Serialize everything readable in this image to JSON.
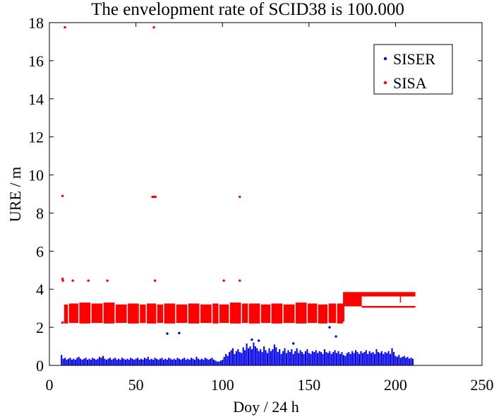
{
  "chart_data": {
    "type": "scatter",
    "title": "The envelopment rate of SCID38 is 100.000",
    "x_axis": {
      "label": "Doy / 24 h",
      "range": [
        0,
        250
      ],
      "ticks": [
        0,
        50,
        100,
        150,
        200,
        250
      ]
    },
    "y_axis": {
      "label": "URE / m",
      "range": [
        0,
        18
      ],
      "ticks": [
        0,
        2,
        4,
        6,
        8,
        10,
        12,
        14,
        16,
        18
      ]
    },
    "grid": false,
    "legend_position": "top-right",
    "series": [
      {
        "name": "SISER",
        "color": "#0000ff",
        "daily": {
          "start_day": 7,
          "low": 0.0,
          "high": [
            0.55,
            0.35,
            0.4,
            0.3,
            0.35,
            0.4,
            0.3,
            0.35,
            0.3,
            0.4,
            0.45,
            0.35,
            0.3,
            0.35,
            0.4,
            0.3,
            0.35,
            0.3,
            0.4,
            0.35,
            0.3,
            0.35,
            0.45,
            0.4,
            0.5,
            0.35,
            0.3,
            0.35,
            0.4,
            0.3,
            0.35,
            0.4,
            0.3,
            0.35,
            0.3,
            0.4,
            0.35,
            0.3,
            0.35,
            0.3,
            0.4,
            0.35,
            0.3,
            0.35,
            0.4,
            0.3,
            0.35,
            0.3,
            0.4,
            0.35,
            0.45,
            0.3,
            0.35,
            0.3,
            0.4,
            0.35,
            0.3,
            0.35,
            0.4,
            0.3,
            0.35,
            0.3,
            0.4,
            0.35,
            0.3,
            0.35,
            0.3,
            0.4,
            0.35,
            0.3,
            0.35,
            0.4,
            0.3,
            0.35,
            0.3,
            0.4,
            0.35,
            0.3,
            0.45,
            0.35,
            0.3,
            0.35,
            0.3,
            0.4,
            0.35,
            0.3,
            0.35,
            0.4,
            0.3,
            0.25,
            0.2,
            0.2,
            0.25,
            0.3,
            0.45,
            0.6,
            0.5,
            0.7,
            0.8,
            0.9,
            0.6,
            0.75,
            0.85,
            0.7,
            0.65,
            0.95,
            0.8,
            1.15,
            0.9,
            1.0,
            0.85,
            1.2,
            1.0,
            0.9,
            0.75,
            0.85,
            0.7,
            1.0,
            0.8,
            0.65,
            0.9,
            0.75,
            0.85,
            1.1,
            0.95,
            0.7,
            0.85,
            0.6,
            0.75,
            0.9,
            0.65,
            0.8,
            0.7,
            0.85,
            0.6,
            0.75,
            0.9,
            0.65,
            0.8,
            0.7,
            0.6,
            0.75,
            0.85,
            0.65,
            0.6,
            0.75,
            0.7,
            0.8,
            0.65,
            0.75,
            0.7,
            0.6,
            0.85,
            0.7,
            0.65,
            0.75,
            0.6,
            0.7,
            0.8,
            0.65,
            0.75,
            0.6,
            0.7,
            0.55,
            0.5,
            0.65,
            0.7,
            0.6,
            0.75,
            0.65,
            0.8,
            0.7,
            0.6,
            0.75,
            0.65,
            0.7,
            0.8,
            0.6,
            0.75,
            0.65,
            0.7,
            0.6,
            0.85,
            0.7,
            0.65,
            0.75,
            0.6,
            0.7,
            0.65,
            0.75,
            0.6,
            0.9,
            0.7,
            0.5,
            0.45,
            0.55,
            0.4,
            0.45,
            0.5,
            0.4,
            0.45,
            0.35,
            0.4,
            0.35
          ]
        },
        "points": [
          [
            68.1,
            1.67
          ],
          [
            75.0,
            1.7
          ],
          [
            117.0,
            1.35
          ],
          [
            121.0,
            1.3
          ],
          [
            141.0,
            1.15
          ],
          [
            161.9,
            2.0
          ],
          [
            165.6,
            1.52
          ]
        ]
      },
      {
        "name": "SISA",
        "color": "#ff0000",
        "ranges": [
          [
            8.5,
            10.7,
            2.2,
            3.2
          ],
          [
            11.3,
            16.7,
            2.23,
            3.25
          ],
          [
            17.3,
            23.7,
            2.2,
            3.3
          ],
          [
            24.3,
            30.7,
            2.23,
            3.25
          ],
          [
            31.3,
            37.7,
            2.2,
            3.3
          ],
          [
            38.3,
            44.7,
            2.23,
            3.2
          ],
          [
            45.3,
            51.7,
            2.2,
            3.25
          ],
          [
            52.3,
            55.7,
            2.23,
            3.2
          ],
          [
            56.3,
            61.7,
            2.2,
            3.25
          ],
          [
            62.3,
            65.7,
            2.23,
            3.2
          ],
          [
            66.3,
            72.7,
            2.2,
            3.25
          ],
          [
            73.3,
            79.7,
            2.23,
            3.2
          ],
          [
            80.3,
            86.7,
            2.2,
            3.25
          ],
          [
            87.3,
            93.7,
            2.23,
            3.2
          ],
          [
            94.3,
            97.7,
            2.2,
            3.25
          ],
          [
            98.3,
            103.7,
            2.23,
            3.2
          ],
          [
            104.3,
            110.7,
            2.2,
            3.3
          ],
          [
            111.3,
            114.7,
            2.23,
            3.25
          ],
          [
            115.3,
            121.7,
            2.2,
            3.25
          ],
          [
            122.3,
            127.7,
            2.23,
            3.2
          ],
          [
            128.3,
            134.7,
            2.2,
            3.25
          ],
          [
            135.3,
            141.7,
            2.23,
            3.2
          ],
          [
            142.3,
            148.7,
            2.2,
            3.3
          ],
          [
            149.3,
            154.7,
            2.23,
            3.25
          ],
          [
            155.3,
            160.7,
            2.2,
            3.2
          ],
          [
            161.3,
            165.7,
            2.23,
            3.25
          ],
          [
            166.3,
            169.7,
            2.2,
            3.25
          ],
          [
            169.7,
            170.5,
            2.3,
            3.85
          ],
          [
            170.5,
            180.5,
            3.1,
            3.85
          ],
          [
            180.5,
            211.5,
            3.62,
            3.85
          ],
          [
            180.5,
            211.5,
            3.03,
            3.12
          ],
          [
            202.6,
            203.2,
            3.3,
            3.62
          ]
        ],
        "points": [
          [
            9.0,
            17.75
          ],
          [
            60.4,
            17.75
          ],
          [
            7.6,
            8.9
          ],
          [
            59.6,
            8.85
          ],
          [
            60.2,
            8.85
          ],
          [
            60.8,
            8.85
          ],
          [
            61.3,
            8.85
          ],
          [
            110.0,
            8.85
          ],
          [
            7.6,
            4.55
          ],
          [
            7.8,
            4.45
          ],
          [
            13.5,
            4.45
          ],
          [
            22.5,
            4.45
          ],
          [
            33.5,
            4.45
          ],
          [
            61.0,
            4.45
          ],
          [
            100.8,
            4.45
          ],
          [
            110.0,
            4.45
          ],
          [
            7.6,
            2.25
          ]
        ]
      }
    ]
  }
}
